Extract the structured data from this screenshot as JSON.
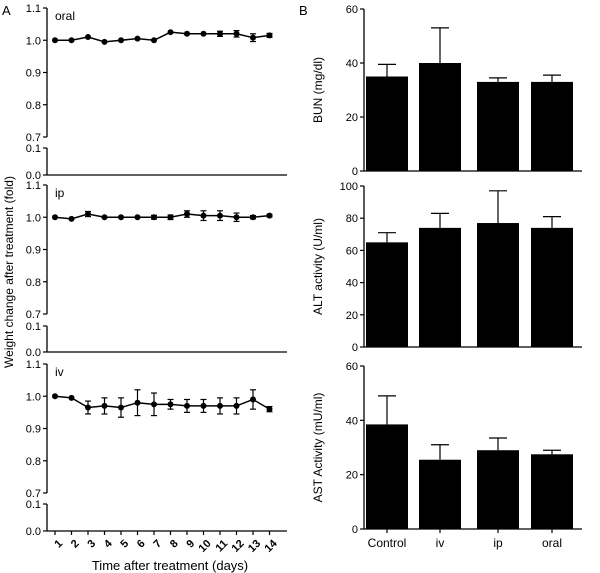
{
  "panel_labels": {
    "a": "A",
    "b": "B"
  },
  "left": {
    "ylabel": "Weight change after treatment (fold)",
    "xlabel": "Time after treatment (days)",
    "x_tick_labels": [
      "1",
      "2",
      "3",
      "4",
      "5",
      "6",
      "7",
      "8",
      "9",
      "10",
      "11",
      "12",
      "13",
      "14"
    ]
  },
  "chart_data": [
    {
      "type": "line",
      "title": "oral",
      "x": [
        1,
        2,
        3,
        4,
        5,
        6,
        7,
        8,
        9,
        10,
        11,
        12,
        13,
        14
      ],
      "values": [
        1.0,
        1.0,
        1.01,
        0.995,
        1.0,
        1.005,
        1.0,
        1.025,
        1.02,
        1.02,
        1.02,
        1.02,
        1.008,
        1.015
      ],
      "errors": [
        0,
        0,
        0,
        0,
        0,
        0,
        0,
        0,
        0,
        0,
        0.008,
        0.01,
        0.012,
        0.006
      ],
      "ylim": [
        0,
        1.1
      ],
      "axis_break": [
        0.1,
        0.7
      ],
      "y_ticks_upper": [
        "0.7",
        "0.8",
        "0.9",
        "1.0",
        "1.1"
      ],
      "y_ticks_lower": [
        "0.0",
        "0.1"
      ]
    },
    {
      "type": "line",
      "title": "ip",
      "x": [
        1,
        2,
        3,
        4,
        5,
        6,
        7,
        8,
        9,
        10,
        11,
        12,
        13,
        14
      ],
      "values": [
        1.0,
        0.995,
        1.01,
        1.0,
        1.0,
        1.0,
        1.0,
        1.0,
        1.01,
        1.005,
        1.005,
        1.0,
        1.0,
        1.005
      ],
      "errors": [
        0,
        0,
        0.008,
        0,
        0,
        0,
        0.006,
        0.007,
        0.01,
        0.015,
        0.015,
        0.013,
        0.005,
        0.004
      ],
      "ylim": [
        0,
        1.1
      ],
      "axis_break": [
        0.1,
        0.7
      ],
      "y_ticks_upper": [
        "0.7",
        "0.8",
        "0.9",
        "1.0",
        "1.1"
      ],
      "y_ticks_lower": [
        "0.0",
        "0.1"
      ]
    },
    {
      "type": "line",
      "title": "iv",
      "x": [
        1,
        2,
        3,
        4,
        5,
        6,
        7,
        8,
        9,
        10,
        11,
        12,
        13,
        14
      ],
      "values": [
        1.0,
        0.995,
        0.965,
        0.97,
        0.965,
        0.98,
        0.975,
        0.975,
        0.97,
        0.97,
        0.97,
        0.97,
        0.99,
        0.96
      ],
      "errors": [
        0,
        0,
        0.02,
        0.025,
        0.03,
        0.04,
        0.035,
        0.015,
        0.02,
        0.02,
        0.025,
        0.025,
        0.03,
        0.008
      ],
      "ylim": [
        0,
        1.1
      ],
      "axis_break": [
        0.1,
        0.7
      ],
      "y_ticks_upper": [
        "0.7",
        "0.8",
        "0.9",
        "1.0",
        "1.1"
      ],
      "y_ticks_lower": [
        "0.0",
        "0.1"
      ]
    },
    {
      "type": "bar",
      "ylabel": "BUN (mg/dl)",
      "categories": [
        "Control",
        "iv",
        "ip",
        "oral"
      ],
      "values": [
        35,
        40,
        33,
        33
      ],
      "errors": [
        4.5,
        13,
        1.5,
        2.5
      ],
      "ylim": [
        0,
        60
      ],
      "y_ticks": [
        "0",
        "20",
        "40",
        "60"
      ]
    },
    {
      "type": "bar",
      "ylabel": "ALT activity (U/ml)",
      "categories": [
        "Control",
        "iv",
        "ip",
        "oral"
      ],
      "values": [
        65,
        74,
        77,
        74
      ],
      "errors": [
        6,
        9,
        20,
        7
      ],
      "ylim": [
        0,
        100
      ],
      "y_ticks": [
        "0",
        "20",
        "40",
        "60",
        "80",
        "100"
      ]
    },
    {
      "type": "bar",
      "ylabel": "AST Activity (mU/ml)",
      "categories": [
        "Control",
        "iv",
        "ip",
        "oral"
      ],
      "values": [
        38.5,
        25.5,
        29,
        27.5
      ],
      "errors": [
        10.5,
        5.5,
        4.5,
        1.5
      ],
      "ylim": [
        0,
        60
      ],
      "y_ticks": [
        "0",
        "20",
        "40",
        "60"
      ],
      "x_tick_labels": [
        "Control",
        "iv",
        "ip",
        "oral"
      ]
    }
  ]
}
